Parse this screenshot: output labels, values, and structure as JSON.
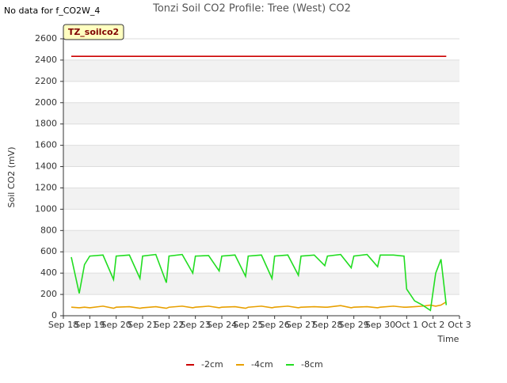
{
  "chart_data": {
    "type": "line",
    "title": "Tonzi Soil CO2 Profile: Tree (West) CO2",
    "no_data_message": "No data for f_CO2W_4",
    "annotation": "TZ_soilco2",
    "y_label": "Soil CO2 (mV)",
    "x_label": "Time",
    "grid": true,
    "legend_position": "bottom",
    "xlim": [
      0,
      15
    ],
    "ylim": [
      0,
      2600
    ],
    "yticks": [
      0,
      200,
      400,
      600,
      800,
      1000,
      1200,
      1400,
      1600,
      1800,
      2000,
      2200,
      2400,
      2600
    ],
    "xticks": [
      {
        "value": 0,
        "label": "Sep 18"
      },
      {
        "value": 1,
        "label": "Sep 19"
      },
      {
        "value": 2,
        "label": "Sep 20"
      },
      {
        "value": 3,
        "label": "Sep 21"
      },
      {
        "value": 4,
        "label": "Sep 22"
      },
      {
        "value": 5,
        "label": "Sep 23"
      },
      {
        "value": 6,
        "label": "Sep 24"
      },
      {
        "value": 7,
        "label": "Sep 25"
      },
      {
        "value": 8,
        "label": "Sep 26"
      },
      {
        "value": 9,
        "label": "Sep 27"
      },
      {
        "value": 10,
        "label": "Sep 28"
      },
      {
        "value": 11,
        "label": "Sep 29"
      },
      {
        "value": 12,
        "label": "Sep 30"
      },
      {
        "value": 13,
        "label": "Oct 1"
      },
      {
        "value": 14,
        "label": "Oct 2"
      },
      {
        "value": 15,
        "label": "Oct 3"
      }
    ],
    "x": [
      0.3,
      0.6,
      0.8,
      1.0,
      1.5,
      1.9,
      2.0,
      2.5,
      2.9,
      3.0,
      3.5,
      3.9,
      4.0,
      4.5,
      4.9,
      5.0,
      5.5,
      5.9,
      6.0,
      6.5,
      6.9,
      7.0,
      7.5,
      7.9,
      8.0,
      8.5,
      8.9,
      9.0,
      9.5,
      9.9,
      10.0,
      10.5,
      10.9,
      11.0,
      11.5,
      11.9,
      12.0,
      12.5,
      12.9,
      13.0,
      13.3,
      13.6,
      13.9,
      14.1,
      14.3,
      14.5
    ],
    "series": [
      {
        "name": "-2cm",
        "color": "#cc0000",
        "values": [
          2435,
          2435,
          2435,
          2435,
          2435,
          2435,
          2435,
          2435,
          2435,
          2435,
          2435,
          2435,
          2435,
          2435,
          2435,
          2435,
          2435,
          2435,
          2435,
          2435,
          2435,
          2435,
          2435,
          2435,
          2435,
          2435,
          2435,
          2435,
          2435,
          2435,
          2435,
          2435,
          2435,
          2435,
          2435,
          2435,
          2435,
          2435,
          2435,
          2435,
          2435,
          2435,
          2435,
          2435,
          2435,
          2435
        ]
      },
      {
        "name": "-4cm",
        "color": "#e8a000",
        "values": [
          80,
          75,
          80,
          75,
          90,
          70,
          80,
          85,
          70,
          75,
          85,
          70,
          80,
          90,
          75,
          80,
          90,
          75,
          80,
          85,
          70,
          80,
          90,
          75,
          80,
          90,
          75,
          80,
          85,
          80,
          80,
          95,
          75,
          80,
          85,
          75,
          80,
          90,
          80,
          80,
          85,
          90,
          100,
          90,
          100,
          130
        ]
      },
      {
        "name": "-8cm",
        "color": "#22dd22",
        "values": [
          550,
          210,
          480,
          560,
          570,
          340,
          560,
          570,
          350,
          560,
          575,
          310,
          560,
          575,
          400,
          560,
          565,
          420,
          560,
          570,
          370,
          560,
          570,
          350,
          560,
          570,
          380,
          560,
          570,
          470,
          560,
          575,
          450,
          560,
          575,
          460,
          570,
          570,
          560,
          250,
          140,
          100,
          50,
          400,
          530,
          100
        ]
      }
    ]
  }
}
